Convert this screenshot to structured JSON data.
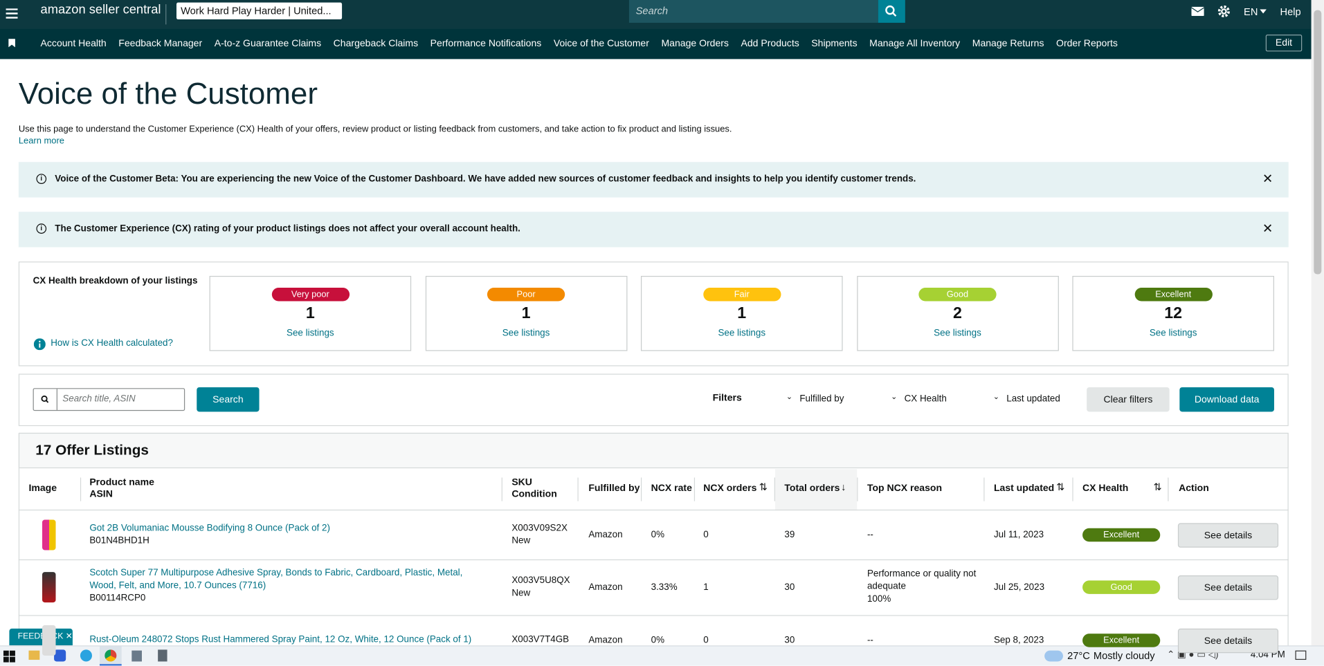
{
  "header": {
    "logo": "amazon seller central",
    "store": "Work Hard Play Harder | United...",
    "search_placeholder": "Search",
    "language": "EN",
    "help": "Help"
  },
  "nav": {
    "links": [
      "Account Health",
      "Feedback Manager",
      "A-to-z Guarantee Claims",
      "Chargeback Claims",
      "Performance Notifications",
      "Voice of the Customer",
      "Manage Orders",
      "Add Products",
      "Shipments",
      "Manage All Inventory",
      "Manage Returns",
      "Order Reports"
    ],
    "edit": "Edit"
  },
  "page": {
    "title": "Voice of the Customer",
    "description": "Use this page to understand the Customer Experience (CX) Health of your offers, review product or listing feedback from customers, and take action to fix product and listing issues.",
    "learn_more": "Learn more"
  },
  "banners": [
    "Voice of the Customer Beta: You are experiencing the new Voice of the Customer Dashboard. We have added new sources of customer feedback and insights to help you identify customer trends.",
    "The Customer Experience (CX) rating of your product listings does not affect your overall account health."
  ],
  "cx_health": {
    "heading": "CX Health breakdown of your listings",
    "help_link": "How is CX Health calculated?",
    "cards": [
      {
        "label": "Very poor",
        "count": 1,
        "link": "See listings",
        "color": "#c7103b"
      },
      {
        "label": "Poor",
        "count": 1,
        "link": "See listings",
        "color": "#f38a00"
      },
      {
        "label": "Fair",
        "count": 1,
        "link": "See listings",
        "color": "#ffc20e"
      },
      {
        "label": "Good",
        "count": 2,
        "link": "See listings",
        "color": "#a6d133"
      },
      {
        "label": "Excellent",
        "count": 12,
        "link": "See listings",
        "color": "#4e7a10"
      }
    ]
  },
  "filters": {
    "search_placeholder": "Search title, ASIN",
    "search_button": "Search",
    "label": "Filters",
    "dropdowns": [
      "Fulfilled by",
      "CX Health",
      "Last updated"
    ],
    "clear": "Clear filters",
    "download": "Download data"
  },
  "table": {
    "title": "17 Offer Listings",
    "columns": [
      [
        "Image"
      ],
      [
        "Product name",
        "ASIN"
      ],
      [
        "SKU",
        "Condition"
      ],
      [
        "Fulfilled by"
      ],
      [
        "NCX rate"
      ],
      [
        "NCX orders"
      ],
      [
        "Total orders"
      ],
      [
        "Top NCX reason"
      ],
      [
        "Last updated"
      ],
      [
        "CX Health"
      ],
      [
        "Action"
      ]
    ],
    "rows": [
      {
        "product_name": "Got 2B Volumaniac Mousse Bodifying 8 Ounce (Pack of 2)",
        "asin": "B01N4BHD1H",
        "sku": "X003V09S2X",
        "condition": "New",
        "fulfilled_by": "Amazon",
        "ncx_rate": "0%",
        "ncx_orders": 0,
        "total_orders": 39,
        "top_ncx_reason": "--",
        "last_updated": "Jul 11, 2023",
        "cx_health": "Excellent",
        "action": "See details"
      },
      {
        "product_name": "Scotch Super 77 Multipurpose Adhesive Spray, Bonds to Fabric, Cardboard, Plastic, Metal, Wood, Felt, and More, 10.7 Ounces (7716)",
        "asin": "B00114RCP0",
        "sku": "X003V5U8QX",
        "condition": "New",
        "fulfilled_by": "Amazon",
        "ncx_rate": "3.33%",
        "ncx_orders": 1,
        "total_orders": 30,
        "top_ncx_reason": "Performance or quality not adequate",
        "top_ncx_share": "100%",
        "last_updated": "Jul 25, 2023",
        "cx_health": "Good",
        "action": "See details"
      },
      {
        "product_name": "Rust-Oleum 248072 Stops Rust Hammered Spray Paint, 12 Oz, White, 12 Ounce (Pack of 1)",
        "sku": "X003V7T4GB",
        "fulfilled_by": "Amazon",
        "ncx_rate": "0%",
        "ncx_orders": 0,
        "total_orders": 30,
        "top_ncx_reason": "--",
        "last_updated": "Sep 8, 2023",
        "cx_health": "Excellent",
        "action": "See details"
      }
    ]
  },
  "feedback": "FEEDBACK",
  "taskbar": {
    "temperature": "27°C",
    "weather": "Mostly cloudy",
    "time": "4:04 PM"
  }
}
